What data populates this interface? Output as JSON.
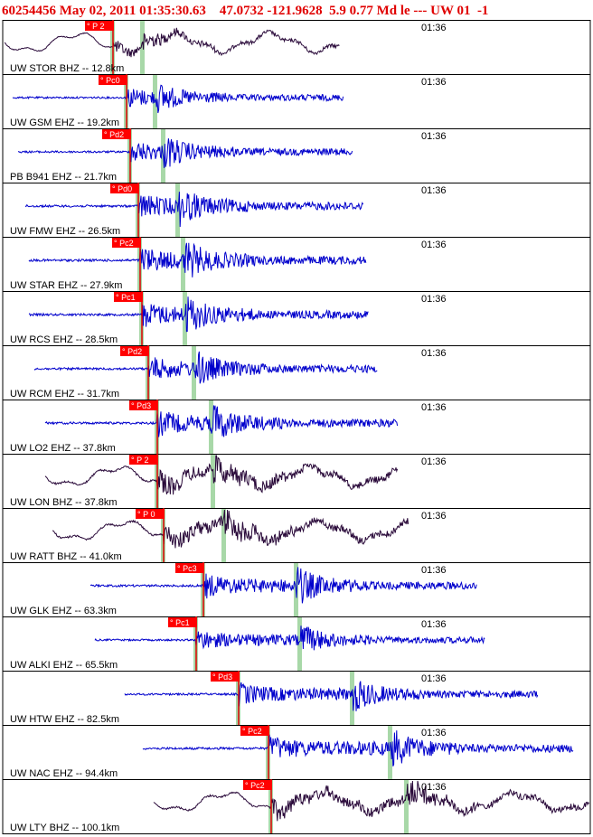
{
  "header": "60254456 May 02, 2011 01:35:30.63    47.0732 -121.9628  5.9 0.77 Md le --- UW 01  -1",
  "colors": {
    "header": "#e00000",
    "trace_vertical": "#0000cc",
    "trace_broadband": "#2a0a3a",
    "pick_flag": "#ff0000",
    "pick_line": "#dd0000",
    "theory_bar": "#a8d8a8",
    "panel_border": "#000000"
  },
  "chart_data": {
    "type": "seismogram",
    "time_label": "01:36",
    "panels": [
      {
        "label": "UW STOR BHZ -- 12.8km",
        "pick": "P 2",
        "p": 125,
        "s": 158,
        "t0": 5,
        "t1": 376,
        "amp": 12,
        "long": true
      },
      {
        "label": "UW GSM EHZ -- 19.2km",
        "pick": "Pc0",
        "p": 140,
        "s": 172,
        "t0": 14,
        "t1": 380,
        "amp": 20,
        "long": false
      },
      {
        "label": "PB B941 EHZ -- 21.7km",
        "pick": "Pd2",
        "p": 144,
        "s": 181,
        "t0": 20,
        "t1": 390,
        "amp": 22,
        "long": false
      },
      {
        "label": "UW FMW EHZ -- 26.5km",
        "pick": "Pd0",
        "p": 153,
        "s": 197,
        "t0": 28,
        "t1": 402,
        "amp": 25,
        "long": false
      },
      {
        "label": "UW STAR EHZ -- 27.9km",
        "pick": "Pc2",
        "p": 155,
        "s": 203,
        "t0": 32,
        "t1": 405,
        "amp": 26,
        "long": false
      },
      {
        "label": "UW RCS EHZ -- 28.5km",
        "pick": "Pc1",
        "p": 157,
        "s": 205,
        "t0": 32,
        "t1": 408,
        "amp": 25,
        "long": false
      },
      {
        "label": "UW RCM EHZ -- 31.7km",
        "pick": "Pd2",
        "p": 164,
        "s": 215,
        "t0": 38,
        "t1": 418,
        "amp": 24,
        "long": false
      },
      {
        "label": "UW LO2 EHZ -- 37.8km",
        "pick": "Pd3",
        "p": 174,
        "s": 234,
        "t0": 50,
        "t1": 440,
        "amp": 25,
        "long": false
      },
      {
        "label": "UW LON BHZ -- 37.8km",
        "pick": "P 2",
        "p": 174,
        "s": 236,
        "t0": 50,
        "t1": 440,
        "amp": 22,
        "long": true
      },
      {
        "label": "UW RATT BHZ -- 41.0km",
        "pick": "P 0",
        "p": 181,
        "s": 248,
        "t0": 58,
        "t1": 452,
        "amp": 22,
        "long": true
      },
      {
        "label": "UW GLK EHZ -- 63.3km",
        "pick": "Pc3",
        "p": 225,
        "s": 328,
        "t0": 100,
        "t1": 528,
        "amp": 24,
        "long": false
      },
      {
        "label": "UW ALKI EHZ -- 65.5km",
        "pick": "Pc1",
        "p": 217,
        "s": 332,
        "t0": 105,
        "t1": 537,
        "amp": 20,
        "long": false
      },
      {
        "label": "UW HTW EHZ -- 82.5km",
        "pick": "Pd3",
        "p": 264,
        "s": 390,
        "t0": 138,
        "t1": 595,
        "amp": 22,
        "long": false
      },
      {
        "label": "UW NAC EHZ -- 94.4km",
        "pick": "Pc2",
        "p": 297,
        "s": 432,
        "t0": 158,
        "t1": 634,
        "amp": 25,
        "long": false
      },
      {
        "label": "UW LTY BHZ -- 100.1km",
        "pick": "Pc2",
        "p": 300,
        "s": 450,
        "t0": 170,
        "t1": 652,
        "amp": 20,
        "long": true
      }
    ]
  }
}
